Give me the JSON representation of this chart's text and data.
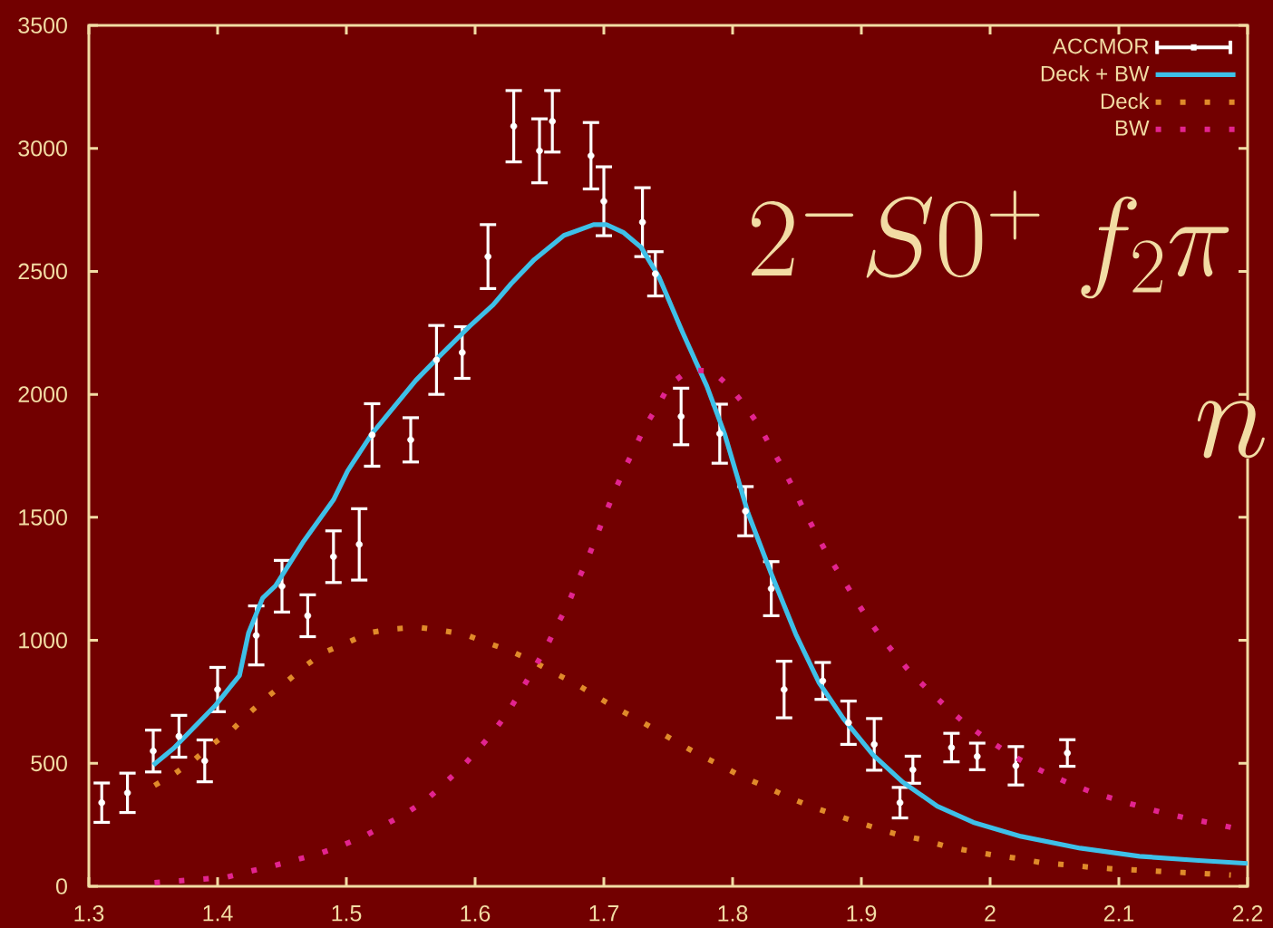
{
  "chart_data": {
    "type": "line",
    "xlim": [
      1.3,
      2.2
    ],
    "ylim": [
      0,
      3500
    ],
    "xticks": [
      1.3,
      1.4,
      1.5,
      1.6,
      1.7,
      1.8,
      1.9,
      2,
      2.1,
      2.2
    ],
    "yticks": [
      0,
      500,
      1000,
      1500,
      2000,
      2500,
      3000,
      3500
    ],
    "legend": "top right",
    "annotations": [
      "2^{-}S0^{+}\\;f_{2}\\pi",
      "n"
    ],
    "series": [
      {
        "name": "ACCMOR",
        "type": "scatter",
        "color": "#ffffff",
        "marker": "circle",
        "x": [
          1.31,
          1.33,
          1.35,
          1.37,
          1.39,
          1.4,
          1.43,
          1.45,
          1.47,
          1.49,
          1.51,
          1.52,
          1.55,
          1.57,
          1.59,
          1.61,
          1.63,
          1.65,
          1.66,
          1.69,
          1.7,
          1.73,
          1.74,
          1.76,
          1.79,
          1.81,
          1.83,
          1.84,
          1.87,
          1.89,
          1.91,
          1.93,
          1.94,
          1.97,
          1.99,
          2.02,
          2.06
        ],
        "values": [
          340,
          380,
          550,
          610,
          510,
          800,
          1020,
          1220,
          1100,
          1340,
          1390,
          1835,
          1815,
          2140,
          2170,
          2560,
          3090,
          2990,
          3110,
          2970,
          2785,
          2700,
          2490,
          1910,
          1840,
          1525,
          1210,
          800,
          835,
          665,
          577,
          340,
          474,
          564,
          528,
          490,
          542
        ],
        "errors": [
          80,
          80,
          85,
          85,
          85,
          90,
          120,
          105,
          85,
          105,
          145,
          127,
          90,
          140,
          105,
          130,
          145,
          130,
          125,
          135,
          140,
          140,
          90,
          115,
          120,
          100,
          110,
          115,
          75,
          88,
          105,
          62,
          55,
          58,
          54,
          78,
          54
        ]
      },
      {
        "name": "Deck + BW",
        "color": "#3ec0e8",
        "line_style": "solid",
        "marker": "none",
        "x": [
          1.35,
          1.366,
          1.398,
          1.417,
          1.424,
          1.435,
          1.445,
          1.467,
          1.49,
          1.501,
          1.52,
          1.554,
          1.57,
          1.596,
          1.614,
          1.628,
          1.646,
          1.669,
          1.692,
          1.702,
          1.715,
          1.729,
          1.743,
          1.761,
          1.78,
          1.794,
          1.812,
          1.83,
          1.849,
          1.867,
          1.886,
          1.909,
          1.932,
          1.959,
          1.987,
          2.024,
          2.07,
          2.116,
          2.162,
          2.2
        ],
        "values": [
          493,
          562,
          734,
          857,
          1030,
          1172,
          1222,
          1404,
          1571,
          1689,
          1841,
          2057,
          2143,
          2278,
          2364,
          2450,
          2548,
          2646,
          2690,
          2690,
          2659,
          2597,
          2475,
          2254,
          2033,
          1836,
          1517,
          1271,
          1026,
          829,
          682,
          535,
          424,
          326,
          260,
          203,
          155,
          122,
          105,
          93
        ]
      },
      {
        "name": "Deck",
        "color": "#e08a2a",
        "line_style": "dotted",
        "marker": "none",
        "x": [
          1.351,
          1.367,
          1.382,
          1.396,
          1.412,
          1.425,
          1.439,
          1.454,
          1.468,
          1.483,
          1.501,
          1.518,
          1.536,
          1.555,
          1.573,
          1.592,
          1.609,
          1.627,
          1.644,
          1.66,
          1.677,
          1.693,
          1.709,
          1.725,
          1.742,
          1.758,
          1.774,
          1.791,
          1.808,
          1.825,
          1.842,
          1.859,
          1.877,
          1.894,
          1.912,
          1.93,
          1.948,
          1.966,
          1.984,
          2.003,
          2.022,
          2.04,
          2.058,
          2.077,
          2.095,
          2.114,
          2.132,
          2.15,
          2.169,
          2.187
        ],
        "values": [
          410,
          459,
          515,
          577,
          640,
          707,
          771,
          834,
          896,
          952,
          991,
          1031,
          1046,
          1053,
          1041,
          1024,
          991,
          957,
          918,
          871,
          827,
          776,
          726,
          682,
          631,
          582,
          535,
          491,
          444,
          407,
          365,
          329,
          295,
          265,
          236,
          208,
          189,
          162,
          144,
          127,
          113,
          96,
          88,
          78,
          71,
          66,
          61,
          56,
          51,
          46
        ]
      },
      {
        "name": "BW",
        "color": "#e3248f",
        "line_style": "dotted",
        "marker": "none",
        "x": [
          1.351,
          1.369,
          1.388,
          1.407,
          1.425,
          1.443,
          1.461,
          1.48,
          1.497,
          1.514,
          1.53,
          1.547,
          1.562,
          1.576,
          1.59,
          1.603,
          1.615,
          1.626,
          1.636,
          1.645,
          1.655,
          1.663,
          1.672,
          1.679,
          1.687,
          1.694,
          1.701,
          1.708,
          1.716,
          1.724,
          1.732,
          1.742,
          1.751,
          1.766,
          1.784,
          1.798,
          1.81,
          1.821,
          1.83,
          1.839,
          1.848,
          1.856,
          1.865,
          1.874,
          1.884,
          1.894,
          1.904,
          1.915,
          1.927,
          1.939,
          1.953,
          1.966,
          1.98,
          1.995,
          2.011,
          2.027,
          2.044,
          2.061,
          2.078,
          2.096,
          2.114,
          2.132,
          2.15,
          2.169,
          2.187
        ],
        "values": [
          15,
          22,
          29,
          37,
          61,
          83,
          108,
          135,
          167,
          204,
          250,
          299,
          351,
          417,
          486,
          560,
          633,
          712,
          798,
          879,
          969,
          1055,
          1144,
          1234,
          1326,
          1419,
          1512,
          1601,
          1697,
          1782,
          1870,
          1954,
          2039,
          2098,
          2096,
          2029,
          1951,
          1870,
          1782,
          1701,
          1610,
          1522,
          1433,
          1345,
          1262,
          1178,
          1095,
          1016,
          938,
          864,
          793,
          729,
          665,
          608,
          552,
          503,
          459,
          420,
          385,
          356,
          328,
          302,
          280,
          260,
          240
        ]
      }
    ]
  }
}
